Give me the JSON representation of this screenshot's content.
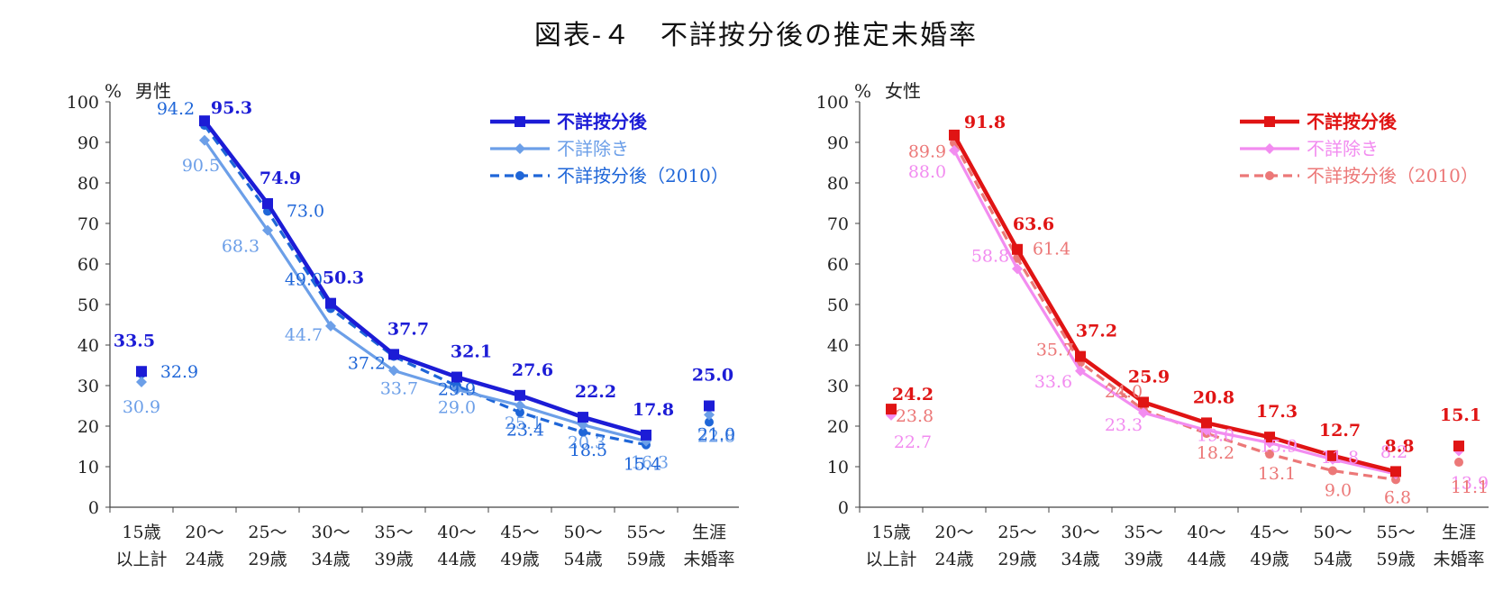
{
  "title": "図表‑４　不詳按分後の推定未婚率",
  "chart_data": [
    {
      "type": "line",
      "panel": "男性",
      "ylabel": "%",
      "ylim": [
        0,
        100
      ],
      "yticks": [
        "0",
        "10",
        "20",
        "30",
        "40",
        "50",
        "60",
        "70",
        "80",
        "90",
        "100"
      ],
      "categories": [
        [
          "15歳",
          "以上計"
        ],
        [
          "20～",
          "24歳"
        ],
        [
          "25～",
          "29歳"
        ],
        [
          "30～",
          "34歳"
        ],
        [
          "35～",
          "39歳"
        ],
        [
          "40～",
          "44歳"
        ],
        [
          "45～",
          "49歳"
        ],
        [
          "50～",
          "54歳"
        ],
        [
          "55～",
          "59歳"
        ],
        [
          "生涯",
          "未婚率"
        ]
      ],
      "connected_range": [
        1,
        8
      ],
      "legend_position": "top-right",
      "series": [
        {
          "name": "不詳按分後",
          "style": "solid-square",
          "bold": true,
          "color": "#1c1cd6",
          "values": [
            33.5,
            95.3,
            74.9,
            50.3,
            37.7,
            32.1,
            27.6,
            22.2,
            17.8,
            25.0
          ],
          "labels": [
            "33.5",
            "95.3",
            "74.9",
            "50.3",
            "37.7",
            "32.1",
            "27.6",
            "22.2",
            "17.8",
            "25.0"
          ]
        },
        {
          "name": "不詳除き",
          "style": "solid-diamond",
          "bold": false,
          "color": "#6c9fe8",
          "values": [
            30.9,
            90.5,
            68.3,
            44.7,
            33.7,
            29.0,
            25.1,
            20.3,
            16.3,
            22.8
          ],
          "labels": [
            "30.9",
            "90.5",
            "68.3",
            "44.7",
            "33.7",
            "29.0",
            "25.1",
            "20.3",
            "16.3",
            "22.8"
          ]
        },
        {
          "name": "不詳按分後（2010）",
          "style": "dashed-circle",
          "bold": false,
          "color": "#1f66d8",
          "values": [
            32.9,
            94.2,
            73.0,
            49.0,
            37.2,
            29.9,
            23.4,
            18.5,
            15.4,
            21.0
          ],
          "labels": [
            "32.9",
            "94.2",
            "73.0",
            "49.0",
            "37.2",
            "29.9",
            "23.4",
            "18.5",
            "15.4",
            "21.0"
          ]
        }
      ]
    },
    {
      "type": "line",
      "panel": "女性",
      "ylabel": "%",
      "ylim": [
        0,
        100
      ],
      "yticks": [
        "0",
        "10",
        "20",
        "30",
        "40",
        "50",
        "60",
        "70",
        "80",
        "90",
        "100"
      ],
      "categories": [
        [
          "15歳",
          "以上計"
        ],
        [
          "20～",
          "24歳"
        ],
        [
          "25～",
          "29歳"
        ],
        [
          "30～",
          "34歳"
        ],
        [
          "35～",
          "39歳"
        ],
        [
          "40～",
          "44歳"
        ],
        [
          "45～",
          "49歳"
        ],
        [
          "50～",
          "54歳"
        ],
        [
          "55～",
          "59歳"
        ],
        [
          "生涯",
          "未婚率"
        ]
      ],
      "connected_range": [
        1,
        8
      ],
      "legend_position": "top-right",
      "series": [
        {
          "name": "不詳按分後",
          "style": "solid-square",
          "bold": true,
          "color": "#e01414",
          "values": [
            24.2,
            91.8,
            63.6,
            37.2,
            25.9,
            20.8,
            17.3,
            12.7,
            8.8,
            15.1
          ],
          "labels": [
            "24.2",
            "91.8",
            "63.6",
            "37.2",
            "25.9",
            "20.8",
            "17.3",
            "12.7",
            "8.8",
            "15.1"
          ]
        },
        {
          "name": "不詳除き",
          "style": "solid-diamond",
          "bold": false,
          "color": "#f28cf0",
          "values": [
            22.7,
            88.0,
            58.8,
            33.6,
            23.3,
            19.0,
            15.9,
            11.8,
            8.2,
            13.9
          ],
          "labels": [
            "22.7",
            "88.0",
            "58.8",
            "33.6",
            "23.3",
            "19.0",
            "15.9",
            "11.8",
            "8.2",
            "13.9"
          ]
        },
        {
          "name": "不詳按分後（2010）",
          "style": "dashed-circle",
          "bold": false,
          "color": "#ec7878",
          "values": [
            23.8,
            89.9,
            61.4,
            35.7,
            24.0,
            18.2,
            13.1,
            9.0,
            6.8,
            11.1
          ],
          "labels": [
            "23.8",
            "89.9",
            "61.4",
            "35.7",
            "24.0",
            "18.2",
            "13.1",
            "9.0",
            "6.8",
            "11.1"
          ]
        }
      ]
    }
  ]
}
